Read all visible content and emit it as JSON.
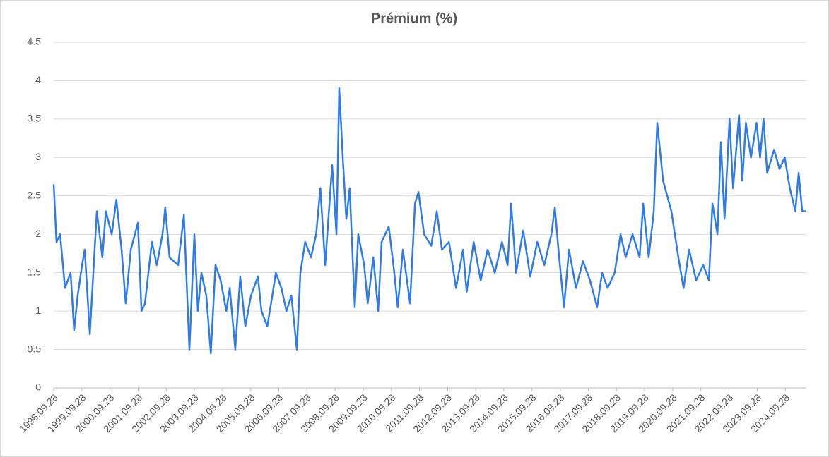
{
  "chart_data": {
    "type": "line",
    "title": "Prémium (%)",
    "x": [
      "1998.09.28",
      "1998.11.03",
      "1998.12.20",
      "1999.02.22",
      "1999.05.05",
      "1999.06.20",
      "1999.08.05",
      "1999.10.01",
      "1999.11.05",
      "2000.01.10",
      "2000.04.10",
      "2000.06.20",
      "2000.08.05",
      "2000.10.20",
      "2000.12.20",
      "2001.02.25",
      "2001.04.20",
      "2001.06.25",
      "2001.09.25",
      "2001.11.10",
      "2001.12.25",
      "2002.03.25",
      "2002.05.28",
      "2002.08.10",
      "2002.09.15",
      "2002.11.10",
      "2003.03.01",
      "2003.05.15",
      "2003.07.25",
      "2003.09.28",
      "2003.11.12",
      "2003.12.28",
      "2004.03.01",
      "2004.04.28",
      "2004.06.28",
      "2004.09.03",
      "2004.11.15",
      "2004.12.30",
      "2005.03.12",
      "2005.05.15",
      "2005.07.20",
      "2005.10.01",
      "2005.12.30",
      "2006.02.15",
      "2006.05.01",
      "2006.07.05",
      "2006.08.20",
      "2006.11.01",
      "2007.01.05",
      "2007.03.10",
      "2007.05.20",
      "2007.07.05",
      "2007.09.05",
      "2007.11.20",
      "2008.01.25",
      "2008.03.20",
      "2008.05.22",
      "2008.08.20",
      "2008.10.15",
      "2008.11.20",
      "2009.01.05",
      "2009.02.20",
      "2009.04.05",
      "2009.06.10",
      "2009.07.25",
      "2009.10.10",
      "2009.11.25",
      "2010.02.05",
      "2010.04.10",
      "2010.05.25",
      "2010.08.25",
      "2010.11.05",
      "2010.12.20",
      "2011.02.25",
      "2011.05.28",
      "2011.08.01",
      "2011.09.15",
      "2011.11.28",
      "2012.02.28",
      "2012.05.10",
      "2012.07.15",
      "2012.10.15",
      "2013.01.15",
      "2013.04.15",
      "2013.06.01",
      "2013.09.01",
      "2013.12.01",
      "2014.03.01",
      "2014.06.01",
      "2014.09.03",
      "2014.11.15",
      "2014.12.30",
      "2015.03.05",
      "2015.06.05",
      "2015.09.05",
      "2015.12.05",
      "2016.03.05",
      "2016.06.05",
      "2016.07.20",
      "2016.09.05",
      "2016.11.15",
      "2017.01.20",
      "2017.04.20",
      "2017.07.20",
      "2017.10.20",
      "2018.01.20",
      "2018.03.25",
      "2018.06.05",
      "2018.09.05",
      "2018.11.20",
      "2019.01.25",
      "2019.04.25",
      "2019.07.25",
      "2019.09.10",
      "2019.11.20",
      "2020.01.25",
      "2020.03.10",
      "2020.05.25",
      "2020.09.10",
      "2020.12.10",
      "2021.02.15",
      "2021.04.28",
      "2021.07.28",
      "2021.10.28",
      "2022.01.10",
      "2022.02.25",
      "2022.05.01",
      "2022.06.15",
      "2022.08.01",
      "2022.10.05",
      "2022.11.20",
      "2023.02.05",
      "2023.03.20",
      "2023.05.05",
      "2023.07.10",
      "2023.09.20",
      "2023.11.05",
      "2023.12.20",
      "2024.02.05",
      "2024.05.05",
      "2024.07.15",
      "2024.09.20",
      "2024.11.25",
      "2025.02.05",
      "2025.03.20",
      "2025.05.05",
      "2025.06.28"
    ],
    "series": [
      {
        "name": "Prémium (%)",
        "color": "#2f7bea",
        "values": [
          2.65,
          1.9,
          2.0,
          1.3,
          1.5,
          0.75,
          1.2,
          1.6,
          1.8,
          0.7,
          2.3,
          1.7,
          2.3,
          2.0,
          2.45,
          1.8,
          1.1,
          1.8,
          2.15,
          1.0,
          1.1,
          1.9,
          1.6,
          2.0,
          2.35,
          1.7,
          1.6,
          2.25,
          0.5,
          2.0,
          1.0,
          1.5,
          1.2,
          0.45,
          1.6,
          1.4,
          1.0,
          1.3,
          0.5,
          1.45,
          0.8,
          1.2,
          1.45,
          1.0,
          0.8,
          1.2,
          1.5,
          1.3,
          1.0,
          1.2,
          0.5,
          1.5,
          1.9,
          1.7,
          2.0,
          2.6,
          1.6,
          2.9,
          2.0,
          3.9,
          3.0,
          2.2,
          2.6,
          1.05,
          2.0,
          1.6,
          1.1,
          1.7,
          1.0,
          1.9,
          2.1,
          1.5,
          1.05,
          1.8,
          1.1,
          2.4,
          2.55,
          2.0,
          1.85,
          2.3,
          1.8,
          1.9,
          1.3,
          1.8,
          1.25,
          1.9,
          1.4,
          1.8,
          1.5,
          1.9,
          1.6,
          2.4,
          1.5,
          2.05,
          1.45,
          1.9,
          1.6,
          2.0,
          2.35,
          1.8,
          1.05,
          1.8,
          1.3,
          1.65,
          1.4,
          1.05,
          1.5,
          1.3,
          1.5,
          2.0,
          1.7,
          2.0,
          1.7,
          2.4,
          1.7,
          2.3,
          3.45,
          2.7,
          2.3,
          1.7,
          1.3,
          1.8,
          1.4,
          1.6,
          1.4,
          2.4,
          2.0,
          3.2,
          2.2,
          3.5,
          2.6,
          3.55,
          2.7,
          3.45,
          3.0,
          3.45,
          3.0,
          3.5,
          2.8,
          3.1,
          2.85,
          3.0,
          2.6,
          2.3,
          2.8,
          2.3,
          2.3
        ]
      }
    ],
    "xlim": [
      "1998.09.28",
      "2025.06.28"
    ],
    "xticks": [
      "1998.09.28",
      "1999.09.28",
      "2000.09.28",
      "2001.09.28",
      "2002.09.28",
      "2003.09.28",
      "2004.09.28",
      "2005.09.28",
      "2006.09.28",
      "2007.09.28",
      "2008.09.28",
      "2009.09.28",
      "2010.09.28",
      "2011.09.28",
      "2012.09.28",
      "2013.09.28",
      "2014.09.28",
      "2015.09.28",
      "2016.09.28",
      "2017.09.28",
      "2018.09.28",
      "2019.09.28",
      "2020.09.28",
      "2021.09.28",
      "2022.09.28",
      "2023.09.28",
      "2024.09.28"
    ],
    "ylim": [
      0,
      4.5
    ],
    "yticks": [
      0,
      0.5,
      1,
      1.5,
      2,
      2.5,
      3,
      3.5,
      4,
      4.5
    ],
    "grid": true
  }
}
